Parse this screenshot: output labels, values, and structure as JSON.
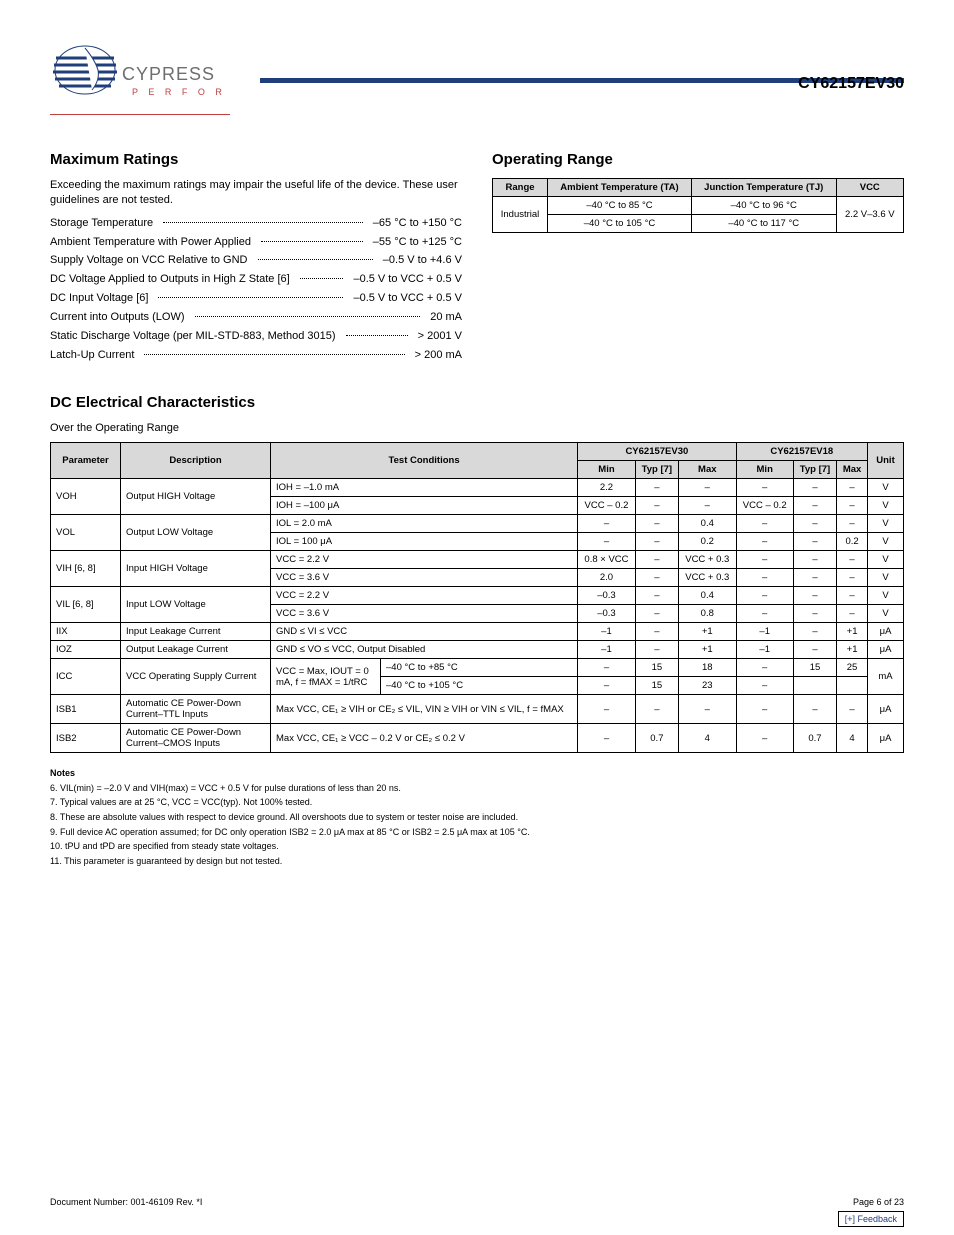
{
  "brand": {
    "name": "CYPRESS",
    "tagline_letters": [
      "P",
      "E",
      "R",
      "F",
      "O",
      "R",
      "M"
    ],
    "logo_blue": "#1f3e7a",
    "logo_red": "#c04040",
    "logo_gray": "#6e6e6e"
  },
  "part_number": "CY62157EV30",
  "sections": {
    "max_ratings_title": "Maximum Ratings",
    "max_ratings_intro": "Exceeding the maximum ratings may impair the useful life of the device. These user guidelines are not tested.",
    "ratings": [
      {
        "label": "Storage Temperature",
        "value": "–65 °C to +150 °C"
      },
      {
        "label": "Ambient Temperature with Power Applied",
        "value": "–55 °C to +125 °C"
      },
      {
        "label": "Supply Voltage on VCC Relative to GND",
        "value": "–0.5 V to +4.6 V"
      },
      {
        "label": "DC Voltage Applied to Outputs in High Z State [6]",
        "value": "–0.5 V to VCC + 0.5 V"
      },
      {
        "label": "DC Input Voltage [6]",
        "value": "–0.5 V to VCC + 0.5 V"
      },
      {
        "label": "Current into Outputs (LOW)",
        "value": "20 mA"
      },
      {
        "label": "Static Discharge Voltage (per MIL-STD-883, Method 3015)",
        "value": "> 2001 V"
      },
      {
        "label": "Latch-Up Current",
        "value": "> 200 mA"
      }
    ],
    "op_range_title": "Operating Range",
    "op_range_table": {
      "headers": [
        "Range",
        "Ambient Temperature (TA)",
        "Junction Temperature (TJ)",
        "VCC"
      ],
      "rows": [
        {
          "range": "Industrial",
          "ta": "–40 °C to 85 °C",
          "tj": "–40 °C to 96 °C",
          "vcc": "2.2 V–3.6 V"
        },
        {
          "range": "",
          "ta": "–40 °C to 105 °C",
          "tj": "–40 °C to 117 °C",
          "vcc": ""
        }
      ]
    },
    "dc_title": "DC Electrical Characteristics",
    "dc_subtitle": "Over the Operating Range",
    "dc_headers": {
      "param": "Parameter",
      "desc": "Description",
      "cond": "Test Conditions",
      "group30": "CY62157EV30",
      "group18": "CY62157EV18",
      "min": "Min",
      "typ": "Typ [7]",
      "max": "Max",
      "unit": "Unit"
    },
    "dc_rows": [
      {
        "param": "VOH",
        "desc": "Output HIGH Voltage",
        "cond": "IOH = –1.0 mA",
        "min30": "2.2",
        "typ30": "–",
        "max30": "–",
        "min18": "–",
        "typ18": "–",
        "max18": "–",
        "unit": "V"
      },
      {
        "param": "",
        "desc": "",
        "cond": "IOH = –100 μA",
        "min30": "VCC – 0.2",
        "typ30": "–",
        "max30": "–",
        "min18": "VCC – 0.2",
        "typ18": "–",
        "max18": "–",
        "unit": "V"
      },
      {
        "param": "VOL",
        "desc": "Output LOW Voltage",
        "cond": "IOL = 2.0 mA",
        "min30": "–",
        "typ30": "–",
        "max30": "0.4",
        "min18": "–",
        "typ18": "–",
        "max18": "–",
        "unit": "V"
      },
      {
        "param": "",
        "desc": "",
        "cond": "IOL = 100 μA",
        "min30": "–",
        "typ30": "–",
        "max30": "0.2",
        "min18": "–",
        "typ18": "–",
        "max18": "0.2",
        "unit": "V"
      },
      {
        "param": "VIH [6, 8]",
        "desc": "Input HIGH Voltage",
        "cond": "VCC = 2.2 V",
        "min30": "0.8 × VCC",
        "typ30": "–",
        "max30": "VCC + 0.3",
        "min18": "–",
        "typ18": "–",
        "max18": "–",
        "unit": "V"
      },
      {
        "param": "",
        "desc": "",
        "cond": "VCC = 3.6 V",
        "min30": "2.0",
        "typ30": "–",
        "max30": "VCC + 0.3",
        "min18": "–",
        "typ18": "–",
        "max18": "–",
        "unit": "V"
      },
      {
        "param": "VIL [6, 8]",
        "desc": "Input LOW Voltage",
        "cond": "VCC = 2.2 V",
        "min30": "–0.3",
        "typ30": "–",
        "max30": "0.4",
        "min18": "–",
        "typ18": "–",
        "max18": "–",
        "unit": "V"
      },
      {
        "param": "",
        "desc": "",
        "cond": "VCC = 3.6 V",
        "min30": "–0.3",
        "typ30": "–",
        "max30": "0.8",
        "min18": "–",
        "typ18": "–",
        "max18": "–",
        "unit": "V"
      },
      {
        "param": "IIX",
        "desc": "Input Leakage Current",
        "cond": "GND ≤ VI ≤ VCC",
        "min30": "–1",
        "typ30": "–",
        "max30": "+1",
        "min18": "–1",
        "typ18": "–",
        "max18": "+1",
        "unit": "μA"
      },
      {
        "param": "IOZ",
        "desc": "Output Leakage Current",
        "cond": "GND ≤ VO ≤ VCC, Output Disabled",
        "min30": "–1",
        "typ30": "–",
        "max30": "+1",
        "min18": "–1",
        "typ18": "–",
        "max18": "+1",
        "unit": "μA"
      },
      {
        "param": "ICC",
        "desc": "VCC Operating Supply Current",
        "cond": "VCC = Max, IOUT = 0 mA, f = fMAX = 1/tRC",
        "cond2a": "–40 °C to +85 °C",
        "cond2b": "–40 °C to +105 °C",
        "min30": "–",
        "typ30": "15",
        "max30": "18",
        "min18": "–",
        "typ18": "15",
        "max18": "25",
        "unit": "mA",
        "row2": {
          "min30": "–",
          "typ30": "15",
          "max30": "23",
          "min18": "–",
          "typ18": "",
          "max18": ""
        }
      },
      {
        "param": "ISB1",
        "desc": "Automatic CE Power-Down Current–TTL Inputs",
        "cond": "Max VCC, CE₁ ≥ VIH or CE₂ ≤ VIL, VIN ≥ VIH or VIN ≤ VIL, f = fMAX",
        "min30": "–",
        "typ30": "–",
        "max30": "–",
        "min18": "–",
        "typ18": "–",
        "max18": "–",
        "unit": "μA"
      },
      {
        "param": "ISB2",
        "desc": "Automatic CE Power-Down Current–CMOS Inputs",
        "cond": "Max VCC, CE₁ ≥ VCC – 0.2 V or CE₂ ≤ 0.2 V",
        "min30": "–",
        "typ30": "0.7",
        "max30": "4",
        "min18": "–",
        "typ18": "0.7",
        "max18": "4",
        "unit": "μA"
      }
    ],
    "notes_title": "Notes",
    "notes": [
      "6.  VIL(min) = –2.0 V and VIH(max) = VCC + 0.5 V for pulse durations of less than 20 ns.",
      "7.  Typical values are at 25 °C, VCC = VCC(typ). Not 100% tested.",
      "8.  These are absolute values with respect to device ground. All overshoots due to system or tester noise are included.",
      "9.  Full device AC operation assumed; for DC only operation ISB2 = 2.0 μA max at 85 °C or ISB2 = 2.5 μA max at 105 °C.",
      "10. tPU and tPD are specified from steady state voltages.",
      "11. This parameter is guaranteed by design but not tested."
    ]
  },
  "footer": {
    "doc_left": "Document Number: 001-46109 Rev. *I",
    "doc_right": "Page 6 of 23",
    "feedback": "[+] Feedback"
  }
}
